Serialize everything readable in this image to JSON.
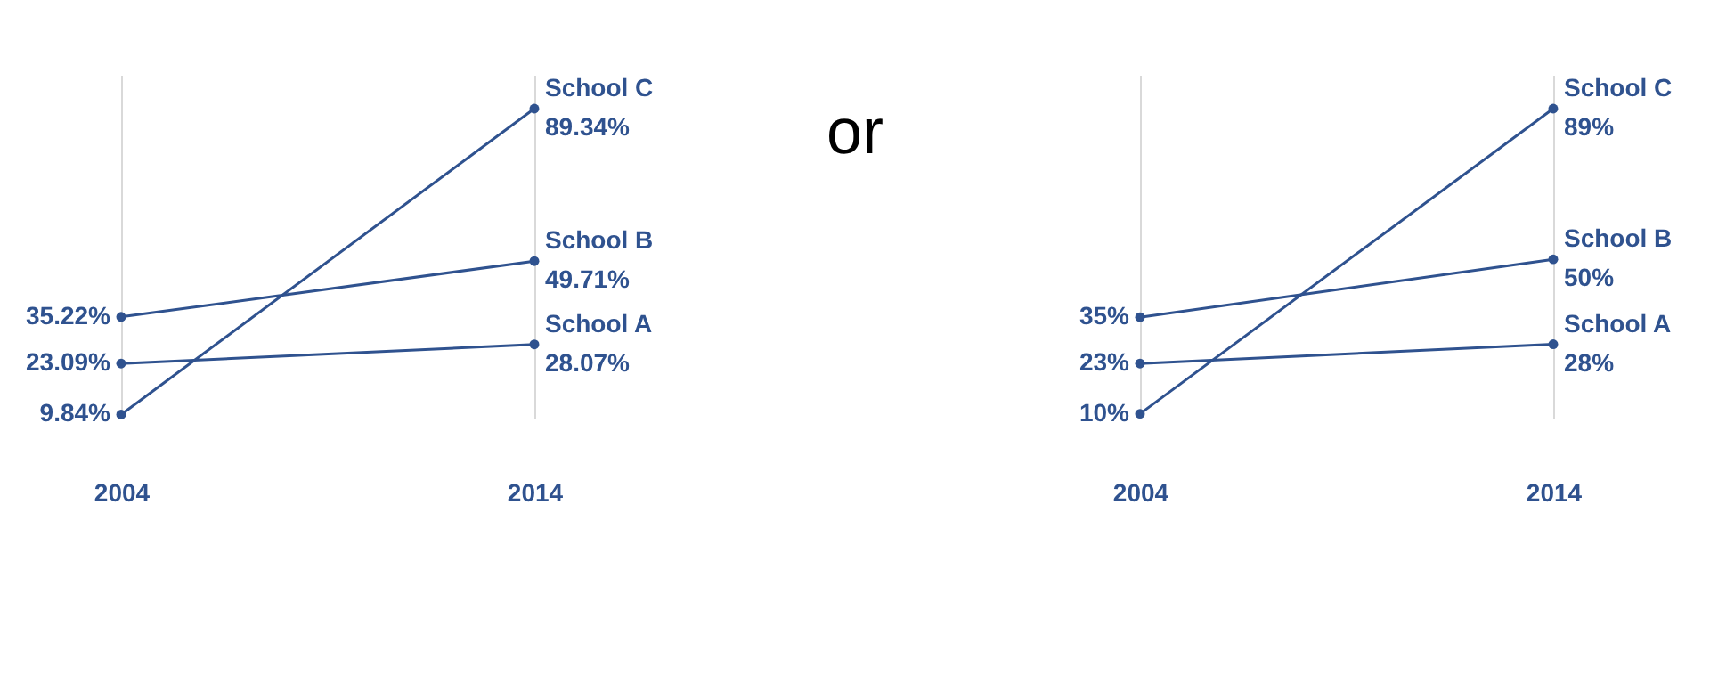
{
  "chart_data": [
    {
      "type": "line",
      "categories": [
        "2004",
        "2014"
      ],
      "marker": "circle",
      "grid": "x",
      "legend": false,
      "data_labels": true,
      "series": [
        {
          "name": "School A",
          "color": "#2f528f",
          "values": [
            23.09,
            28.07
          ],
          "value_labels": [
            "23.09%",
            "28.07%"
          ]
        },
        {
          "name": "School B",
          "color": "#2f528f",
          "values": [
            35.22,
            49.71
          ],
          "value_labels": [
            "35.22%",
            "49.71%"
          ]
        },
        {
          "name": "School C",
          "color": "#2f528f",
          "values": [
            9.84,
            89.34
          ],
          "value_labels": [
            "9.84%",
            "89.34%"
          ]
        }
      ]
    },
    {
      "type": "other",
      "annotations": [
        "or"
      ]
    },
    {
      "type": "line",
      "categories": [
        "2004",
        "2014"
      ],
      "marker": "circle",
      "grid": "x",
      "legend": false,
      "data_labels": true,
      "series": [
        {
          "name": "School A",
          "color": "#2f528f",
          "values": [
            23,
            28
          ],
          "value_labels": [
            "23%",
            "28%"
          ]
        },
        {
          "name": "School B",
          "color": "#2f528f",
          "values": [
            35,
            50
          ],
          "value_labels": [
            "35%",
            "50%"
          ]
        },
        {
          "name": "School C",
          "color": "#2f528f",
          "values": [
            10,
            89
          ],
          "value_labels": [
            "10%",
            "89%"
          ]
        }
      ]
    }
  ]
}
